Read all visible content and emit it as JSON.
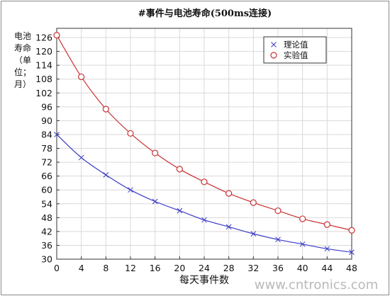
{
  "chart_data": {
    "type": "line",
    "title": "#事件与电池寿命(500ms连接)",
    "xlabel": "每天事件数",
    "ylabel": "电池寿命（单位：月）",
    "ylabel_lines": [
      "电池",
      "寿命",
      "（单",
      "位；",
      "月）"
    ],
    "xlim": [
      0,
      48
    ],
    "ylim": [
      30,
      130
    ],
    "xticks": [
      0,
      4,
      8,
      12,
      16,
      20,
      24,
      28,
      32,
      36,
      40,
      44,
      48
    ],
    "yticks": [
      30,
      36,
      42,
      48,
      54,
      60,
      66,
      72,
      78,
      84,
      90,
      96,
      102,
      108,
      114,
      120,
      126
    ],
    "grid": true,
    "legend_position": "top-right",
    "series": [
      {
        "name": "理论值",
        "marker": "x",
        "color": "#3a3ac8",
        "x": [
          0,
          4,
          8,
          12,
          16,
          20,
          24,
          28,
          32,
          36,
          40,
          44,
          48
        ],
        "y": [
          84,
          74,
          66.5,
          60,
          55,
          51,
          47,
          44,
          41,
          38.5,
          36.5,
          34.5,
          33
        ]
      },
      {
        "name": "实验值",
        "marker": "o",
        "color": "#c83232",
        "x": [
          0,
          4,
          8,
          12,
          16,
          20,
          24,
          28,
          32,
          36,
          40,
          44,
          48
        ],
        "y": [
          127,
          109,
          95,
          84.5,
          76,
          69,
          63.5,
          58.5,
          54.5,
          51,
          47.5,
          45,
          42.5
        ]
      }
    ]
  },
  "watermark": "www.cntronics.com"
}
